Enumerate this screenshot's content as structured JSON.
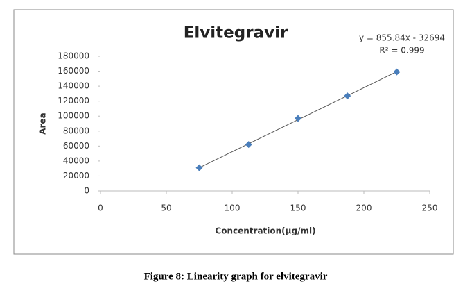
{
  "chart_data": {
    "type": "scatter",
    "title": "Elvitegravir",
    "x_label": "Concentration(µg/ml)",
    "y_label": "Area",
    "annotations": [
      "y = 855.84x - 32694",
      "R² = 0.999"
    ],
    "x": [
      75,
      112.5,
      150,
      187.5,
      225
    ],
    "values": [
      31000,
      62000,
      97000,
      127000,
      159000
    ],
    "color": "#4a7ebb",
    "trendline": true,
    "xlim": [
      0,
      250
    ],
    "xticks": [
      0,
      50,
      100,
      150,
      200,
      250
    ],
    "ylim": [
      0,
      180000
    ],
    "yticks": [
      0,
      20000,
      40000,
      60000,
      80000,
      100000,
      120000,
      140000,
      160000,
      180000
    ]
  },
  "caption": "Figure 8: Linearity graph for elvitegravir"
}
